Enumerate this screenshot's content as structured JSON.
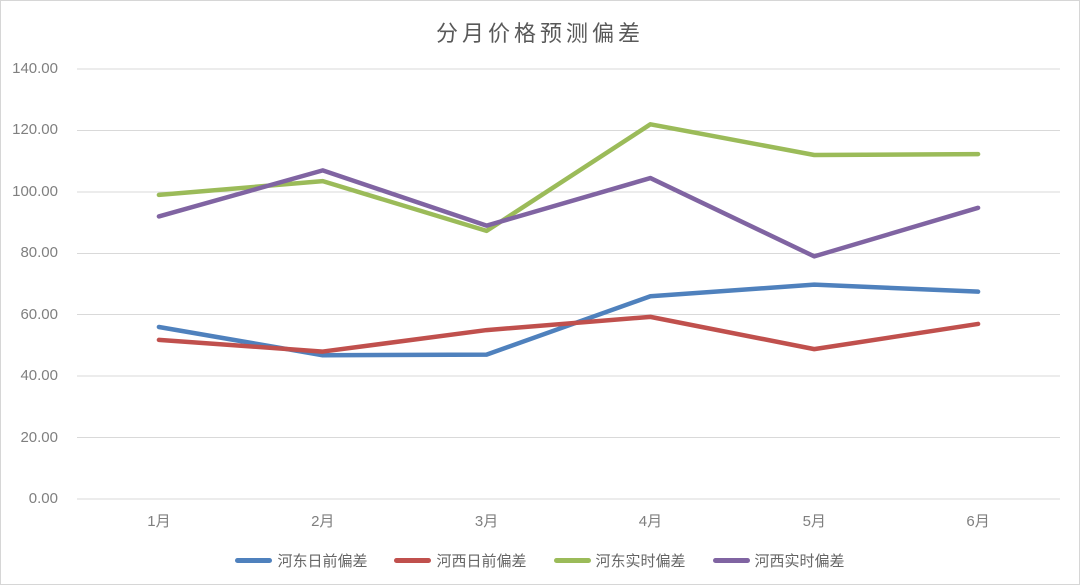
{
  "chart_data": {
    "type": "line",
    "title": "分月价格预测偏差",
    "categories": [
      "1月",
      "2月",
      "3月",
      "4月",
      "5月",
      "6月"
    ],
    "series": [
      {
        "name": "河东日前偏差",
        "color": "#4F81BD",
        "values": [
          56.0,
          46.8,
          47.0,
          66.0,
          69.8,
          67.5
        ]
      },
      {
        "name": "河西日前偏差",
        "color": "#C0504D",
        "values": [
          51.8,
          48.0,
          55.0,
          59.3,
          48.8,
          57.0
        ]
      },
      {
        "name": "河东实时偏差",
        "color": "#9BBB59",
        "values": [
          99.0,
          103.5,
          87.3,
          122.0,
          112.0,
          112.3
        ]
      },
      {
        "name": "河西实时偏差",
        "color": "#8064A2",
        "values": [
          92.0,
          107.0,
          89.0,
          104.5,
          79.0,
          94.8
        ]
      }
    ],
    "ylim": [
      0,
      140
    ],
    "y_tick_step": 20,
    "y_tick_labels": [
      "0.00",
      "20.00",
      "40.00",
      "60.00",
      "80.00",
      "100.00",
      "120.00",
      "140.00"
    ],
    "grid": true,
    "legend_position": "bottom",
    "xlabel": "",
    "ylabel": ""
  },
  "style": {
    "gridline_color": "#d9d9d9",
    "axis_text_color": "#7f7f7f",
    "title_color": "#595959",
    "legend_text_color": "#666666",
    "frame_border_color": "#d6d6d6",
    "line_width": 4.5
  }
}
